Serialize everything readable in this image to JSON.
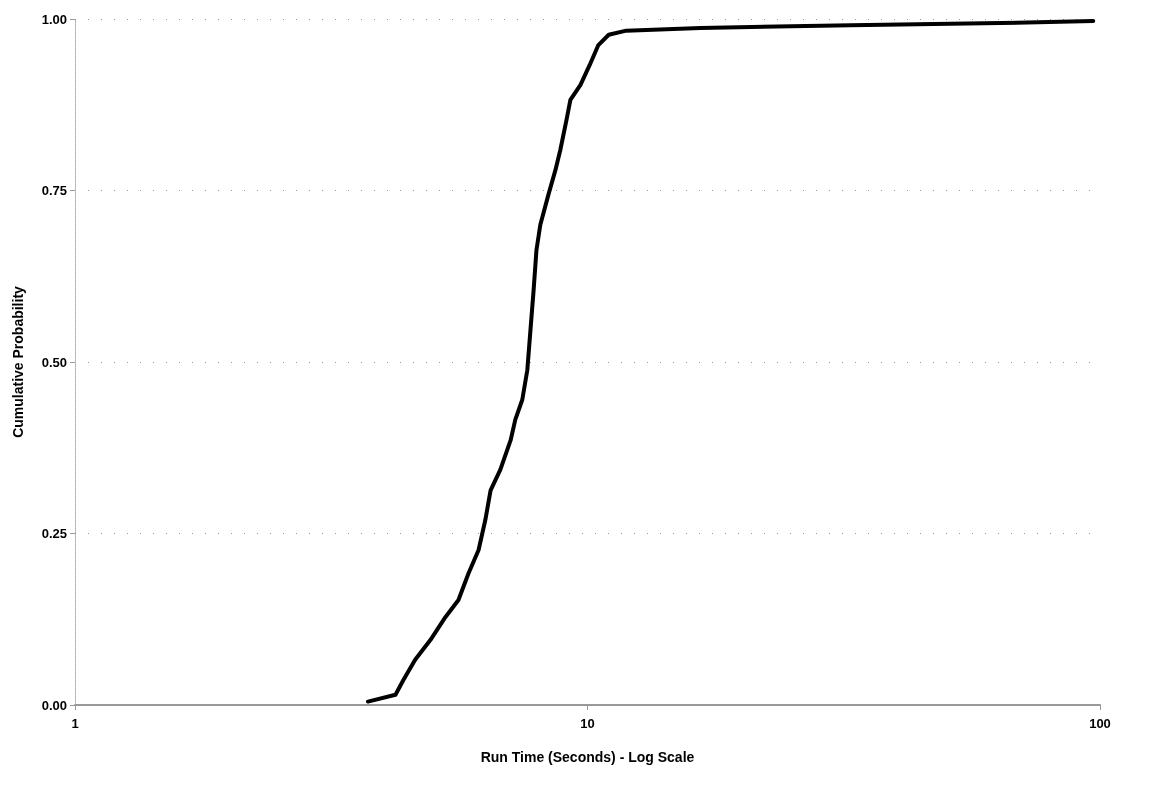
{
  "chart_data": {
    "type": "line",
    "xlabel": "Run Time (Seconds) - Log Scale",
    "ylabel": "Cumulative Probability",
    "log": "x",
    "grid": "y",
    "marker": "none",
    "line_style": "solid",
    "xlim": [
      1,
      100
    ],
    "xticks": [
      1,
      10,
      100
    ],
    "ylim": [
      0,
      1
    ],
    "yticks": [
      {
        "value": 0,
        "label": "0.00"
      },
      {
        "value": 0.25,
        "label": "0.25"
      },
      {
        "value": 0.5,
        "label": "0.50"
      },
      {
        "value": 0.75,
        "label": "0.75"
      },
      {
        "value": 1,
        "label": "1.00"
      }
    ],
    "series": [
      {
        "color": "#000000",
        "x": [
          3.73,
          4.22,
          4.37,
          4.61,
          4.94,
          5.28,
          5.6,
          5.86,
          6.13,
          6.32,
          6.47,
          6.76,
          7.08,
          7.23,
          7.46,
          7.63,
          7.74,
          7.85,
          7.95,
          8.09,
          8.39,
          8.66,
          8.85,
          9.1,
          9.26,
          9.69,
          10.1,
          10.5,
          11,
          11.9,
          16.6,
          32.6,
          64,
          97
        ],
        "values": [
          0.005,
          0.015,
          0.036,
          0.066,
          0.095,
          0.128,
          0.153,
          0.192,
          0.226,
          0.27,
          0.313,
          0.343,
          0.386,
          0.416,
          0.445,
          0.488,
          0.547,
          0.605,
          0.663,
          0.7,
          0.744,
          0.78,
          0.809,
          0.853,
          0.882,
          0.904,
          0.933,
          0.962,
          0.977,
          0.983,
          0.987,
          0.991,
          0.994,
          0.997
        ]
      }
    ]
  }
}
